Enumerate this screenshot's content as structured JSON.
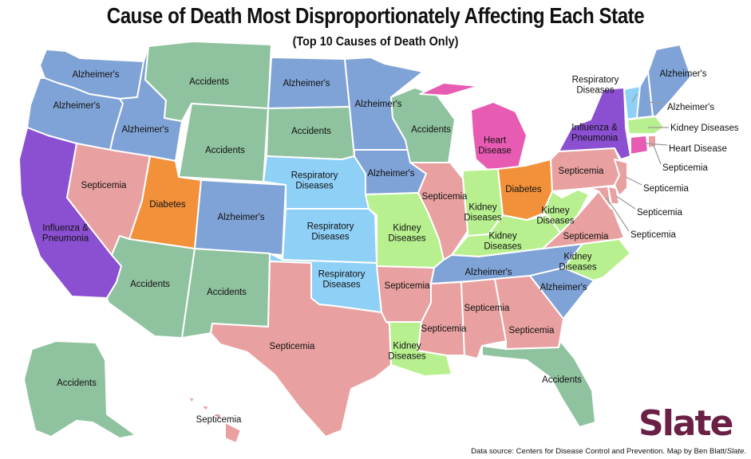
{
  "title": "Cause of Death Most Disproportionately Affecting Each State",
  "subtitle": "(Top 10 Causes of Death Only)",
  "source": "Data source: Centers for Disease Control and Prevention. Map by Ben Blatt/",
  "source_em": "Slate",
  "source_end": ".",
  "logo": "Slate",
  "colors": {
    "Alzheimer's": "#7fa3d6",
    "Accidents": "#8fc29e",
    "Septicemia": "#e8a1a0",
    "Respiratory Diseases": "#8fd0f7",
    "Kidney Diseases": "#b8f08f",
    "Diabetes": "#f2913a",
    "Heart Disease": "#e85bb3",
    "Influenza & Pneumonia": "#8b4fd1"
  },
  "map_data": {
    "WA": {
      "cause": "Alzheimer's",
      "label": "Alzheimer's"
    },
    "OR": {
      "cause": "Alzheimer's",
      "label": "Alzheimer's"
    },
    "CA": {
      "cause": "Influenza & Pneumonia",
      "label": "Influenza &\nPneumonia"
    },
    "NV": {
      "cause": "Septicemia",
      "label": "Septicemia"
    },
    "ID": {
      "cause": "Alzheimer's",
      "label": "Alzheimer's"
    },
    "MT": {
      "cause": "Accidents",
      "label": "Accidents"
    },
    "WY": {
      "cause": "Accidents",
      "label": "Accidents"
    },
    "UT": {
      "cause": "Diabetes",
      "label": "Diabetes"
    },
    "AZ": {
      "cause": "Accidents",
      "label": "Accidents"
    },
    "CO": {
      "cause": "Alzheimer's",
      "label": "Alzheimer's"
    },
    "NM": {
      "cause": "Accidents",
      "label": "Accidents"
    },
    "ND": {
      "cause": "Alzheimer's",
      "label": "Alzheimer's"
    },
    "SD": {
      "cause": "Accidents",
      "label": "Accidents"
    },
    "NE": {
      "cause": "Respiratory Diseases",
      "label": "Respiratory\nDiseases"
    },
    "KS": {
      "cause": "Respiratory Diseases",
      "label": "Respiratory\nDiseases"
    },
    "OK": {
      "cause": "Respiratory Diseases",
      "label": "Respiratory\nDiseases"
    },
    "TX": {
      "cause": "Septicemia",
      "label": "Septicemia"
    },
    "MN": {
      "cause": "Alzheimer's",
      "label": "Alzheimer's"
    },
    "IA": {
      "cause": "Alzheimer's",
      "label": "Alzheimer's"
    },
    "MO": {
      "cause": "Kidney Diseases",
      "label": "Kidney\nDiseases"
    },
    "AR": {
      "cause": "Septicemia",
      "label": "Septicemia"
    },
    "LA": {
      "cause": "Kidney Diseases",
      "label": "Kidney\nDiseases"
    },
    "WI": {
      "cause": "Accidents",
      "label": "Accidents"
    },
    "IL": {
      "cause": "Septicemia",
      "label": "Septicemia"
    },
    "MI": {
      "cause": "Heart Disease",
      "label": "Heart\nDisease"
    },
    "IN": {
      "cause": "Kidney Diseases",
      "label": "Kidney\nDiseases"
    },
    "OH": {
      "cause": "Diabetes",
      "label": "Diabetes"
    },
    "KY": {
      "cause": "Kidney Diseases",
      "label": "Kidney\nDiseases"
    },
    "TN": {
      "cause": "Alzheimer's",
      "label": "Alzheimer's"
    },
    "MS": {
      "cause": "Septicemia",
      "label": "Septicemia"
    },
    "AL": {
      "cause": "Septicemia",
      "label": "Septicemia"
    },
    "GA": {
      "cause": "Septicemia",
      "label": "Septicemia"
    },
    "FL": {
      "cause": "Accidents",
      "label": "Accidents"
    },
    "SC": {
      "cause": "Alzheimer's",
      "label": "Alzheimer's"
    },
    "NC": {
      "cause": "Kidney Diseases",
      "label": "Kidney\nDiseases"
    },
    "VA": {
      "cause": "Septicemia",
      "label": "Septicemia"
    },
    "WV": {
      "cause": "Kidney Diseases",
      "label": "Kidney\nDiseases"
    },
    "PA": {
      "cause": "Septicemia",
      "label": "Septicemia"
    },
    "NY": {
      "cause": "Influenza & Pneumonia",
      "label": "Influenza &\nPneumonia"
    },
    "VT": {
      "cause": "Respiratory Diseases",
      "label": "Respiratory\nDiseases"
    },
    "NH": {
      "cause": "Alzheimer's",
      "label": "Alzheimer's"
    },
    "ME": {
      "cause": "Alzheimer's",
      "label": "Alzheimer's"
    },
    "MA": {
      "cause": "Kidney Diseases",
      "label": "Kidney Diseases"
    },
    "CT": {
      "cause": "Heart Disease",
      "label": "Heart Disease"
    },
    "RI": {
      "cause": "Septicemia",
      "label": "Septicemia"
    },
    "NJ": {
      "cause": "Septicemia",
      "label": "Septicemia"
    },
    "DE": {
      "cause": "Septicemia",
      "label": "Septicemia"
    },
    "MD": {
      "cause": "Septicemia",
      "label": "Septicemia"
    },
    "AK": {
      "cause": "Accidents",
      "label": "Accidents"
    },
    "HI": {
      "cause": "Septicemia",
      "label": "Septicemia"
    }
  }
}
